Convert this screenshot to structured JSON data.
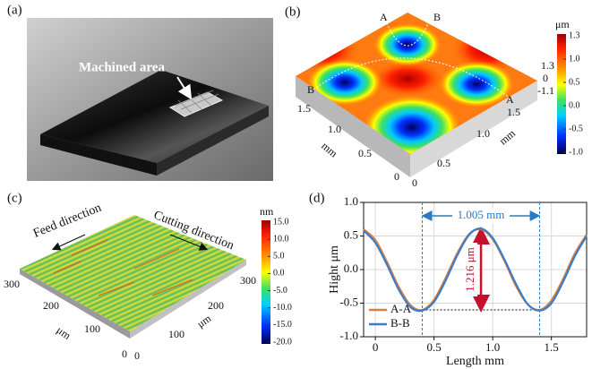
{
  "panel_a": {
    "label": "(a)",
    "annotation": "Machined area"
  },
  "panel_b": {
    "label": "(b)",
    "colorbar_unit": "μm",
    "colorbar_ticks": [
      "1.3",
      "1.0",
      "0.5",
      "0.0",
      "-0.5",
      "-1.0"
    ],
    "section_labels": [
      "A",
      "B",
      "B",
      "A"
    ],
    "z_ticks": [
      "1.3",
      "0",
      "-1.1"
    ],
    "left_axis": {
      "ticks": [
        "1.5",
        "1.0",
        "0.5",
        "0"
      ],
      "unit": "mm"
    },
    "right_axis": {
      "ticks": [
        "0",
        "0.5",
        "1.0",
        "1.5"
      ],
      "unit": "mm"
    }
  },
  "panel_c": {
    "label": "(c)",
    "colorbar_unit": "nm",
    "colorbar_ticks": [
      "15.0",
      "10.0",
      "5.0",
      "0.0",
      "-5.0",
      "-10.0",
      "-15.0",
      "-20.0"
    ],
    "feed_label": "Feed direction",
    "cutting_label": "Cutting direction",
    "left_axis": {
      "ticks": [
        "300",
        "200",
        "100",
        "0"
      ],
      "unit": "μm"
    },
    "right_axis": {
      "ticks": [
        "0",
        "100",
        "200",
        "300"
      ],
      "unit": "μm"
    }
  },
  "chart_data": {
    "type": "line",
    "label": "(d)",
    "x_label": "Length mm",
    "y_label": "Hight μm",
    "span_label": "1.005 mm",
    "height_label": "1.216 μm",
    "x": [
      -0.1,
      0,
      0.1,
      0.2,
      0.3,
      0.4,
      0.5,
      0.6,
      0.7,
      0.8,
      0.9,
      1.0,
      1.1,
      1.2,
      1.3,
      1.4,
      1.5,
      1.6,
      1.7,
      1.8
    ],
    "series": [
      {
        "name": "A-A",
        "color": "#e07b39",
        "values": [
          0.6,
          0.44,
          0.11,
          -0.26,
          -0.53,
          -0.6,
          -0.45,
          -0.12,
          0.25,
          0.53,
          0.6,
          0.45,
          0.13,
          -0.25,
          -0.52,
          -0.6,
          -0.46,
          -0.14,
          0.24,
          0.52
        ]
      },
      {
        "name": "B-B",
        "color": "#3a7dc9",
        "values": [
          0.58,
          0.4,
          0.07,
          -0.3,
          -0.56,
          -0.61,
          -0.48,
          -0.16,
          0.22,
          0.52,
          0.61,
          0.47,
          0.15,
          -0.22,
          -0.52,
          -0.61,
          -0.5,
          -0.18,
          0.2,
          0.5
        ]
      }
    ],
    "xlim": [
      -0.1,
      1.8
    ],
    "xticks": [
      0,
      0.5,
      {
        "value": 1,
        "label": "1.0"
      },
      1.5
    ],
    "ylim": [
      -1,
      1
    ],
    "yticks": [
      {
        "value": -1,
        "label": "-1.0"
      },
      -0.5,
      {
        "value": 0,
        "label": "0.0"
      },
      0.5,
      {
        "value": 1,
        "label": "1.0"
      }
    ],
    "grid": true,
    "legend": "lower left"
  }
}
